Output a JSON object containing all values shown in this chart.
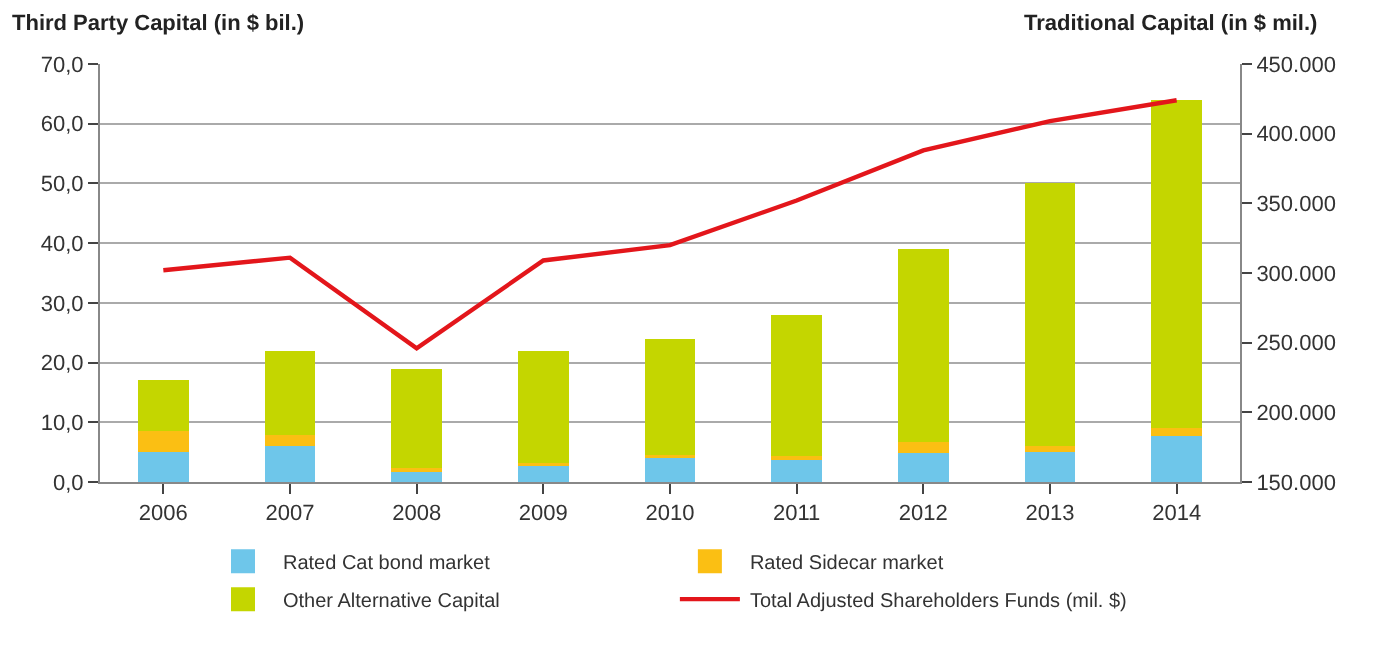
{
  "chart_data": {
    "type": "bar",
    "stacked": true,
    "ylabel": "Third Party Capital (in $ bil.)",
    "y2label": "Traditional Capital (in $ mil.)",
    "categories": [
      "2006",
      "2007",
      "2008",
      "2009",
      "2010",
      "2011",
      "2012",
      "2013",
      "2014"
    ],
    "series": [
      {
        "name": "Rated Cat bond market",
        "color": "#6ec6ea",
        "values": [
          5,
          6,
          2,
          3,
          4.3,
          3.7,
          4.8,
          5.1,
          7.7
        ]
      },
      {
        "name": "Rated Sidecar market",
        "color": "#fbbf13",
        "values": [
          3.5,
          1.8,
          0.3,
          0.2,
          0.2,
          0.6,
          1.9,
          1,
          1.3
        ]
      },
      {
        "name": "Other Alternative Capital",
        "color": "#c4d600",
        "values": [
          8.5,
          14.2,
          16.7,
          18.8,
          19.5,
          23.7,
          32.3,
          44,
          55
        ]
      },
      {
        "name": "Total Adjusted Shareholders Funds (mil. $)",
        "type": "line",
        "axis": "y2",
        "color": "#e3161b",
        "marker": "none",
        "line_style": "solid",
        "values": [
          302000,
          311000,
          246000,
          309000,
          320000,
          352000,
          388000,
          409000,
          424000
        ]
      }
    ],
    "ylim": [
      0,
      70
    ],
    "yticks": [
      {
        "value": 0,
        "label": "0,0"
      },
      {
        "value": 10,
        "label": "10,0"
      },
      {
        "value": 20,
        "label": "20,0"
      },
      {
        "value": 30,
        "label": "30,0"
      },
      {
        "value": 40,
        "label": "40,0"
      },
      {
        "value": 50,
        "label": "50,0"
      },
      {
        "value": 60,
        "label": "60,0"
      },
      {
        "value": 70,
        "label": "70,0"
      }
    ],
    "y2lim": [
      150000,
      450000
    ],
    "y2ticks": [
      {
        "value": 150000,
        "label": "150.000"
      },
      {
        "value": 200000,
        "label": "200.000"
      },
      {
        "value": 250000,
        "label": "250.000"
      },
      {
        "value": 300000,
        "label": "300.000"
      },
      {
        "value": 350000,
        "label": "350.000"
      },
      {
        "value": 400000,
        "label": "400.000"
      },
      {
        "value": 450000,
        "label": "450.000"
      }
    ],
    "grid": "y",
    "legend": "bottom"
  }
}
